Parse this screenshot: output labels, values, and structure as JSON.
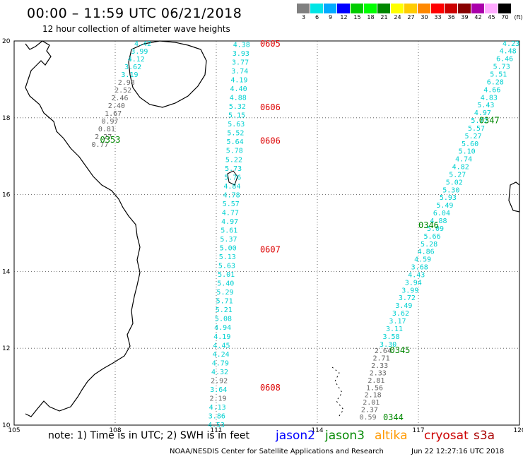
{
  "header": {
    "title": "00:00 – 11:59 UTC 06/21/2018",
    "subtitle": "12 hour collection of altimeter wave heights"
  },
  "legend": {
    "colors": [
      "#808080",
      "#00e5e5",
      "#00aaff",
      "#0000ff",
      "#00cc00",
      "#00ff00",
      "#008800",
      "#ffff00",
      "#ffcc00",
      "#ff8800",
      "#ff0000",
      "#cc0000",
      "#880000",
      "#aa00aa",
      "#ffaaff",
      "#000000"
    ],
    "labels": [
      "3",
      "6",
      "9",
      "12",
      "15",
      "18",
      "21",
      "24",
      "27",
      "30",
      "33",
      "36",
      "39",
      "42",
      "45",
      "70"
    ],
    "unit": "(ft)"
  },
  "note": "note: 1) Time is in UTC; 2) SWH is in feet",
  "satellites": [
    {
      "name": "jason2",
      "color": "#0000ff"
    },
    {
      "name": "jason3",
      "color": "#008800"
    },
    {
      "name": "altika",
      "color": "#ff9900"
    },
    {
      "name": "cryosat",
      "color": "#cc0000"
    },
    {
      "name": "s3a",
      "color": "#aa0000"
    }
  ],
  "footer": {
    "credit": "NOAA/NESDIS Center for Satellite Applications and Research",
    "timestamp": "Jun 22 12:27:16 UTC 2018"
  },
  "map": {
    "lon_range": [
      105,
      120
    ],
    "lat_range": [
      10,
      20
    ],
    "lon_ticks": [
      "105",
      "108",
      "111",
      "114",
      "117",
      "120"
    ],
    "lat_ticks": [
      "10",
      "12",
      "14",
      "16",
      "18",
      "20"
    ],
    "tracks": [
      {
        "lon_start": 108.82,
        "lat_start": 19.93,
        "lon_end": 107.55,
        "lat_end": 17.3,
        "values": [
          "4.42",
          "3.99",
          "4.12",
          "3.62",
          "3.19",
          "2.98",
          "2.52",
          "2.46",
          "2.40",
          "1.67",
          "0.97",
          "0.81",
          "2.27",
          "0.77"
        ],
        "colors": [
          "c",
          "c",
          "c",
          "c",
          "c",
          "g",
          "g",
          "g",
          "g",
          "g",
          "g",
          "g",
          "g",
          "g"
        ],
        "time_labels": [
          {
            "text": "0353",
            "lon": 107.55,
            "lat": 17.43,
            "color": "#008800"
          }
        ]
      },
      {
        "lon_start": 111.75,
        "lat_start": 19.9,
        "lon_end": 111.0,
        "lat_end": 10.0,
        "values": [
          "4.38",
          "3.93",
          "3.77",
          "3.74",
          "4.19",
          "4.40",
          "4.88",
          "5.32",
          "5.15",
          "5.63",
          "5.52",
          "5.64",
          "5.78",
          "5.22",
          "5.73",
          "5.76",
          "4.84",
          "4.78",
          "5.57",
          "4.77",
          "4.97",
          "5.61",
          "5.37",
          "5.00",
          "5.13",
          "5.63",
          "5.01",
          "5.40",
          "5.29",
          "5.71",
          "5.21",
          "5.08",
          "4.94",
          "4.19",
          "4.45",
          "4.24",
          "4.79",
          "4.32",
          "2.92",
          "3.64",
          "2.19",
          "4.13",
          "3.86",
          "4.53"
        ],
        "colors": [
          "c",
          "c",
          "c",
          "c",
          "c",
          "c",
          "c",
          "c",
          "c",
          "c",
          "c",
          "c",
          "c",
          "c",
          "c",
          "c",
          "c",
          "c",
          "c",
          "c",
          "c",
          "c",
          "c",
          "c",
          "c",
          "c",
          "c",
          "c",
          "c",
          "c",
          "c",
          "c",
          "c",
          "c",
          "c",
          "c",
          "c",
          "c",
          "g",
          "c",
          "g",
          "c",
          "c",
          "c"
        ],
        "time_labels": [
          {
            "text": "0605",
            "lon": 112.3,
            "lat": 19.93,
            "color": "#dd0000"
          },
          {
            "text": "0606",
            "lon": 112.3,
            "lat": 18.27,
            "color": "#dd0000"
          },
          {
            "text": "0606",
            "lon": 112.3,
            "lat": 17.4,
            "color": "#dd0000"
          },
          {
            "text": "0607",
            "lon": 112.3,
            "lat": 14.57,
            "color": "#dd0000"
          },
          {
            "text": "0608",
            "lon": 112.3,
            "lat": 10.97,
            "color": "#dd0000"
          }
        ]
      },
      {
        "lon_start": 119.75,
        "lat_start": 19.93,
        "lon_end": 116.1,
        "lat_end": 12.1,
        "values": [
          "4.23",
          "4.48",
          "6.46",
          "5.73",
          "5.51",
          "6.28",
          "4.66",
          "4.83",
          "5.43",
          "4.97",
          "5.72",
          "5.57",
          "5.27",
          "5.60",
          "5.10",
          "4.74",
          "4.82",
          "5.27",
          "5.02",
          "5.30",
          "5.93",
          "5.49",
          "6.04",
          "4.88",
          "5.09",
          "5.66",
          "5.28",
          "4.86",
          "4.59",
          "3.68",
          "4.43",
          "3.94",
          "3.99",
          "3.72",
          "3.49",
          "3.62",
          "3.17",
          "3.11",
          "3.58",
          "3.30"
        ],
        "colors": [
          "c",
          "c",
          "c",
          "c",
          "c",
          "c",
          "c",
          "c",
          "c",
          "c",
          "c",
          "c",
          "c",
          "c",
          "c",
          "c",
          "c",
          "c",
          "c",
          "c",
          "c",
          "c",
          "c",
          "c",
          "c",
          "c",
          "c",
          "c",
          "c",
          "c",
          "c",
          "c",
          "c",
          "c",
          "c",
          "c",
          "c",
          "c",
          "c",
          "c"
        ],
        "time_labels": [
          {
            "text": "0347",
            "lon": 118.8,
            "lat": 17.93,
            "color": "#008800"
          },
          {
            "text": "0346",
            "lon": 117.0,
            "lat": 15.2,
            "color": "#008800"
          }
        ]
      },
      {
        "lon_start": 115.95,
        "lat_start": 11.93,
        "lon_end": 115.5,
        "lat_end": 10.2,
        "values": [
          "2.64",
          "2.71",
          "2.33",
          "2.33",
          "2.81",
          "1.56",
          "2.18",
          "2.01",
          "2.37",
          "0.59"
        ],
        "colors": [
          "g",
          "g",
          "g",
          "g",
          "g",
          "g",
          "g",
          "g",
          "g",
          "g"
        ],
        "time_labels": [
          {
            "text": "0345",
            "lon": 116.15,
            "lat": 11.95,
            "color": "#008800"
          },
          {
            "text": "0344",
            "lon": 115.95,
            "lat": 10.2,
            "color": "#008800"
          }
        ]
      }
    ]
  }
}
